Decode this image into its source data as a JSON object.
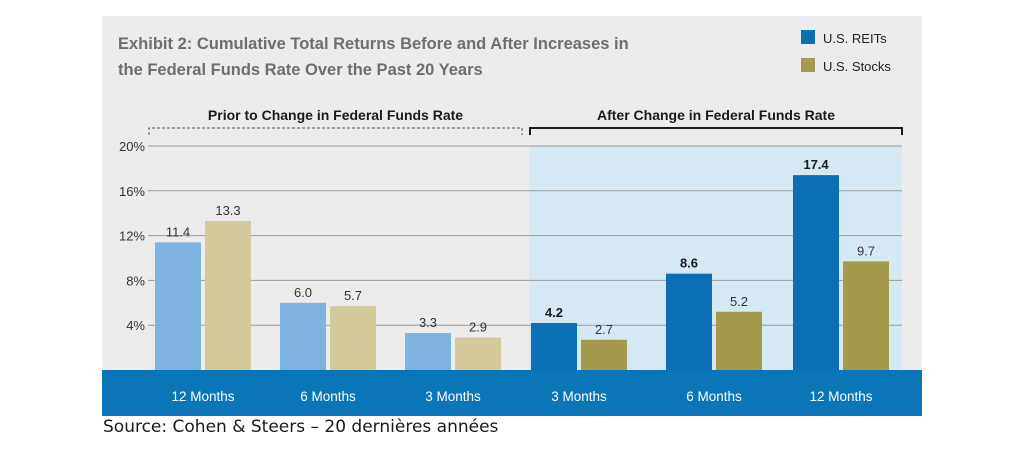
{
  "chart_data": {
    "type": "bar",
    "title_lines": [
      "Exhibit 2: Cumulative Total Returns Before and After Increases in",
      "the Federal Funds Rate Over the Past 20 Years"
    ],
    "groups": [
      {
        "label": "Prior to Change in Federal Funds Rate",
        "categories": [
          "12 Months",
          "6 Months",
          "3 Months"
        ]
      },
      {
        "label": "After Change in Federal Funds Rate",
        "categories": [
          "3 Months",
          "6 Months",
          "12 Months"
        ]
      }
    ],
    "series": [
      {
        "name": "U.S. REITs",
        "values": [
          11.4,
          6.0,
          3.3,
          4.2,
          8.6,
          17.4
        ],
        "labels": [
          "11.4",
          "6.0",
          "3.3",
          "4.2",
          "8.6",
          "17.4"
        ]
      },
      {
        "name": "U.S. Stocks",
        "values": [
          13.3,
          5.7,
          2.9,
          2.7,
          5.2,
          9.7
        ],
        "labels": [
          "13.3",
          "5.7",
          "2.9",
          "2.7",
          "5.2",
          "9.7"
        ]
      }
    ],
    "yticks": [
      4,
      8,
      12,
      16,
      20
    ],
    "ytick_labels": [
      "4%",
      "8%",
      "12%",
      "16%",
      "20%"
    ],
    "ylim": [
      0,
      20
    ],
    "grid": true,
    "legend_position": "top-right",
    "colors": {
      "reits_before": "#7fb3e0",
      "stocks_before": "#d3c99a",
      "reits_after": "#0a6fb4",
      "stocks_after": "#a39a4e",
      "category_band": "#0a76b8",
      "after_panel": "#d7e8f5",
      "background": "#ececec"
    }
  },
  "source_note": "Source: Cohen & Steers – 20 dernières années"
}
